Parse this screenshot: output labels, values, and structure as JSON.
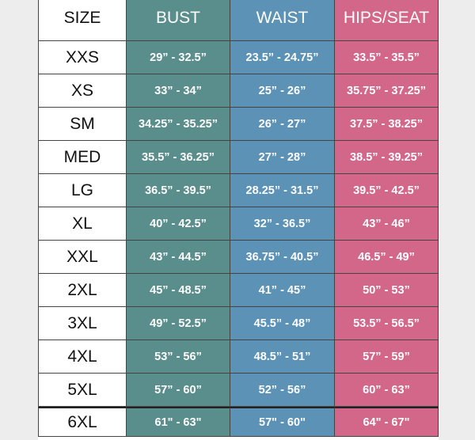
{
  "table": {
    "header": [
      "SIZE",
      "BUST",
      "WAIST",
      "HIPS/SEAT"
    ],
    "rows": [
      [
        "XXS",
        "29” - 32.5”",
        "23.5” - 24.75”",
        "33.5” - 35.5”"
      ],
      [
        "XS",
        "33” - 34”",
        "25” - 26”",
        "35.75” - 37.25”"
      ],
      [
        "SM",
        "34.25” - 35.25”",
        "26” - 27”",
        "37.5” - 38.25”"
      ],
      [
        "MED",
        "35.5” - 36.25”",
        "27” - 28”",
        "38.5” - 39.25”"
      ],
      [
        "LG",
        "36.5” - 39.5”",
        "28.25” - 31.5”",
        "39.5” - 42.5”"
      ],
      [
        "XL",
        "40” - 42.5”",
        "32” - 36.5”",
        "43” - 46”"
      ],
      [
        "XXL",
        "43” - 44.5”",
        "36.75” - 40.5”",
        "46.5” - 49”"
      ],
      [
        "2XL",
        "45” - 48.5”",
        "41” - 45”",
        "50” - 53”"
      ],
      [
        "3XL",
        "49” - 52.5”",
        "45.5” - 48”",
        "53.5” - 56.5”"
      ],
      [
        "4XL",
        "53” - 56”",
        "48.5” - 51”",
        "57” - 59”"
      ],
      [
        "5XL",
        "57” - 60”",
        "52” - 56”",
        "60” - 63”"
      ],
      [
        "6XL",
        "61\" - 63\"",
        "57\" - 60\"",
        "64\" - 67\""
      ]
    ]
  }
}
